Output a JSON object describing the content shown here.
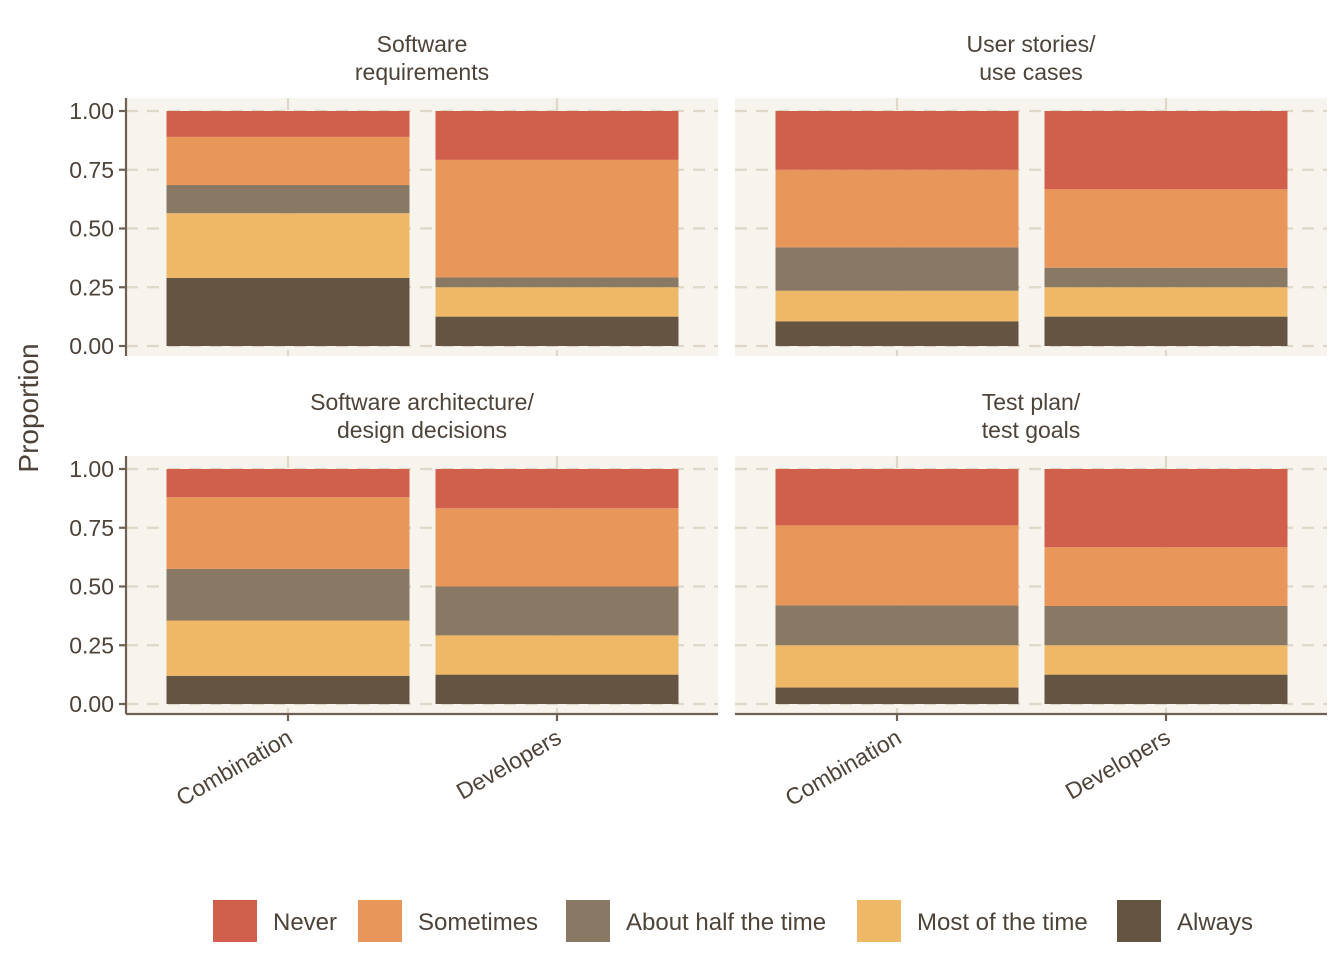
{
  "chart_data": {
    "type": "bar",
    "stacked": true,
    "ylabel": "Proportion",
    "ylim": [
      0,
      1
    ],
    "yticks": [
      "0.00",
      "0.25",
      "0.50",
      "0.75",
      "1.00"
    ],
    "categories": [
      "Combination",
      "Developers"
    ],
    "legend": {
      "position": "bottom",
      "items": [
        {
          "name": "Never",
          "color": "#d05f4b"
        },
        {
          "name": "Sometimes",
          "color": "#e8965a"
        },
        {
          "name": "About half the time",
          "color": "#887864"
        },
        {
          "name": "Most of the time",
          "color": "#efb866"
        },
        {
          "name": "Always",
          "color": "#655441"
        }
      ]
    },
    "panels": [
      {
        "title": [
          "Software",
          "requirements"
        ],
        "bars": [
          {
            "category": "Combination",
            "Always": 0.29,
            "Most of the time": 0.275,
            "About half the time": 0.12,
            "Sometimes": 0.205,
            "Never": 0.11
          },
          {
            "category": "Developers",
            "Always": 0.125,
            "Most of the time": 0.125,
            "About half the time": 0.042,
            "Sometimes": 0.5,
            "Never": 0.208
          }
        ]
      },
      {
        "title": [
          "User stories/",
          "use cases"
        ],
        "bars": [
          {
            "category": "Combination",
            "Always": 0.105,
            "Most of the time": 0.13,
            "About half the time": 0.185,
            "Sometimes": 0.33,
            "Never": 0.25
          },
          {
            "category": "Developers",
            "Always": 0.125,
            "Most of the time": 0.125,
            "About half the time": 0.083,
            "Sometimes": 0.334,
            "Never": 0.333
          }
        ]
      },
      {
        "title": [
          "Software architecture/",
          "design decisions"
        ],
        "bars": [
          {
            "category": "Combination",
            "Always": 0.12,
            "Most of the time": 0.235,
            "About half the time": 0.22,
            "Sometimes": 0.305,
            "Never": 0.12
          },
          {
            "category": "Developers",
            "Always": 0.125,
            "Most of the time": 0.167,
            "About half the time": 0.208,
            "Sometimes": 0.333,
            "Never": 0.167
          }
        ]
      },
      {
        "title": [
          "Test plan/",
          "test goals"
        ],
        "bars": [
          {
            "category": "Combination",
            "Always": 0.07,
            "Most of the time": 0.18,
            "About half the time": 0.17,
            "Sometimes": 0.34,
            "Never": 0.24
          },
          {
            "category": "Developers",
            "Always": 0.125,
            "Most of the time": 0.125,
            "About half the time": 0.167,
            "Sometimes": 0.25,
            "Never": 0.333
          }
        ]
      }
    ]
  }
}
